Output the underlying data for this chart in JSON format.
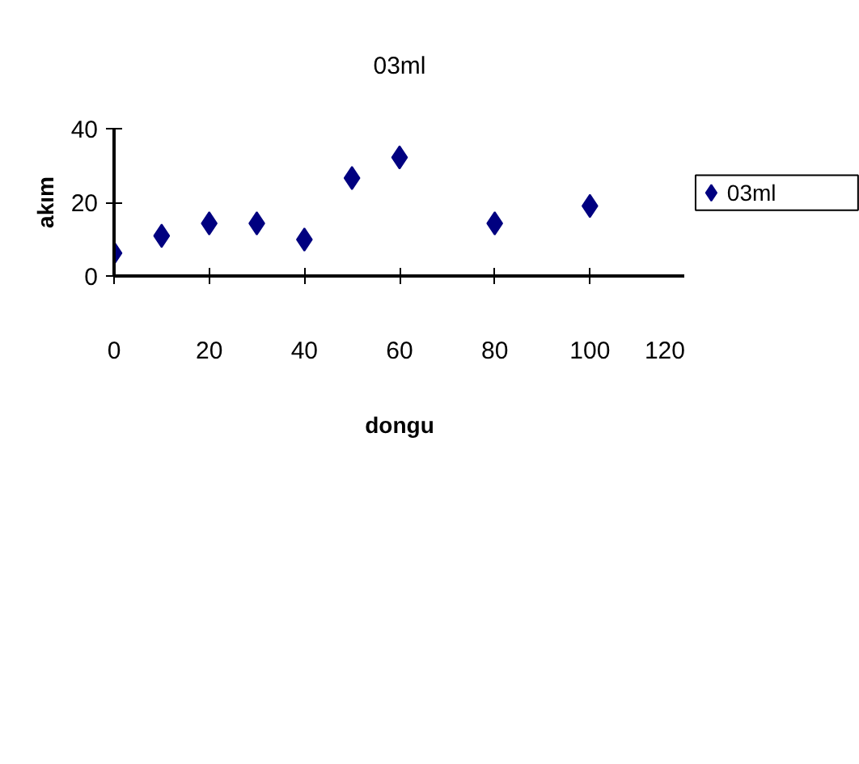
{
  "chart_data": {
    "type": "scatter",
    "title": "03ml",
    "xlabel": "dongu",
    "ylabel": "akım",
    "x": [
      0,
      10,
      20,
      30,
      40,
      50,
      60,
      80,
      100
    ],
    "series": [
      {
        "name": "03ml",
        "color": "#000080",
        "values": [
          6.2,
          10.9,
          14.3,
          14.3,
          9.9,
          26.6,
          32.2,
          14.3,
          19.0
        ]
      }
    ],
    "xlim": [
      0,
      120
    ],
    "xticks": [
      0,
      20,
      40,
      60,
      80,
      100,
      120
    ],
    "ylim": [
      0,
      40
    ],
    "yticks": [
      0,
      20,
      40
    ],
    "marker": "diamond",
    "grid": false,
    "legend": "right"
  }
}
